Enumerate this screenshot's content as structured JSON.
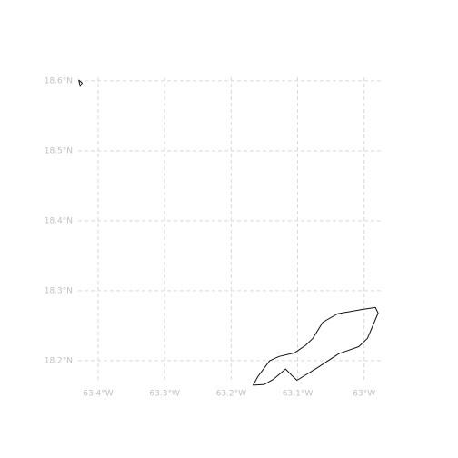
{
  "map": {
    "projection": "plate-carree",
    "lon_range": [
      -63.43,
      -62.975
    ],
    "lat_range": [
      18.17,
      18.605
    ],
    "lon_ticks": [
      {
        "value": -63.4,
        "label": "63.4°W"
      },
      {
        "value": -63.3,
        "label": "63.3°W"
      },
      {
        "value": -63.2,
        "label": "63.2°W"
      },
      {
        "value": -63.1,
        "label": "63.1°W"
      },
      {
        "value": -63.0,
        "label": "63°W"
      }
    ],
    "lat_ticks": [
      {
        "value": 18.6,
        "label": "18.6°N"
      },
      {
        "value": 18.5,
        "label": "18.5°N"
      },
      {
        "value": 18.4,
        "label": "18.4°N"
      },
      {
        "value": 18.3,
        "label": "18.3°N"
      },
      {
        "value": 18.2,
        "label": "18.2°N"
      }
    ],
    "gridlines": true,
    "colors": {
      "grid": "#d9d9d9",
      "tick_label": "#c2c2c2",
      "coastline": "#111111"
    },
    "features": [
      {
        "name": "anguilla-main-island",
        "coords": [
          [
            -63.167,
            18.165
          ],
          [
            -63.15,
            18.166
          ],
          [
            -63.137,
            18.173
          ],
          [
            -63.118,
            18.188
          ],
          [
            -63.108,
            18.178
          ],
          [
            -63.101,
            18.172
          ],
          [
            -63.07,
            18.19
          ],
          [
            -63.038,
            18.21
          ],
          [
            -63.008,
            18.22
          ],
          [
            -62.995,
            18.232
          ],
          [
            -62.979,
            18.268
          ],
          [
            -62.983,
            18.276
          ],
          [
            -63.005,
            18.273
          ],
          [
            -63.04,
            18.267
          ],
          [
            -63.062,
            18.255
          ],
          [
            -63.077,
            18.232
          ],
          [
            -63.088,
            18.222
          ],
          [
            -63.105,
            18.211
          ],
          [
            -63.128,
            18.206
          ],
          [
            -63.142,
            18.2
          ],
          [
            -63.16,
            18.177
          ],
          [
            -63.167,
            18.165
          ]
        ]
      },
      {
        "name": "sombrero-islet",
        "coords": [
          [
            -63.429,
            18.601
          ],
          [
            -63.424,
            18.597
          ],
          [
            -63.427,
            18.592
          ],
          [
            -63.429,
            18.601
          ]
        ]
      }
    ]
  }
}
